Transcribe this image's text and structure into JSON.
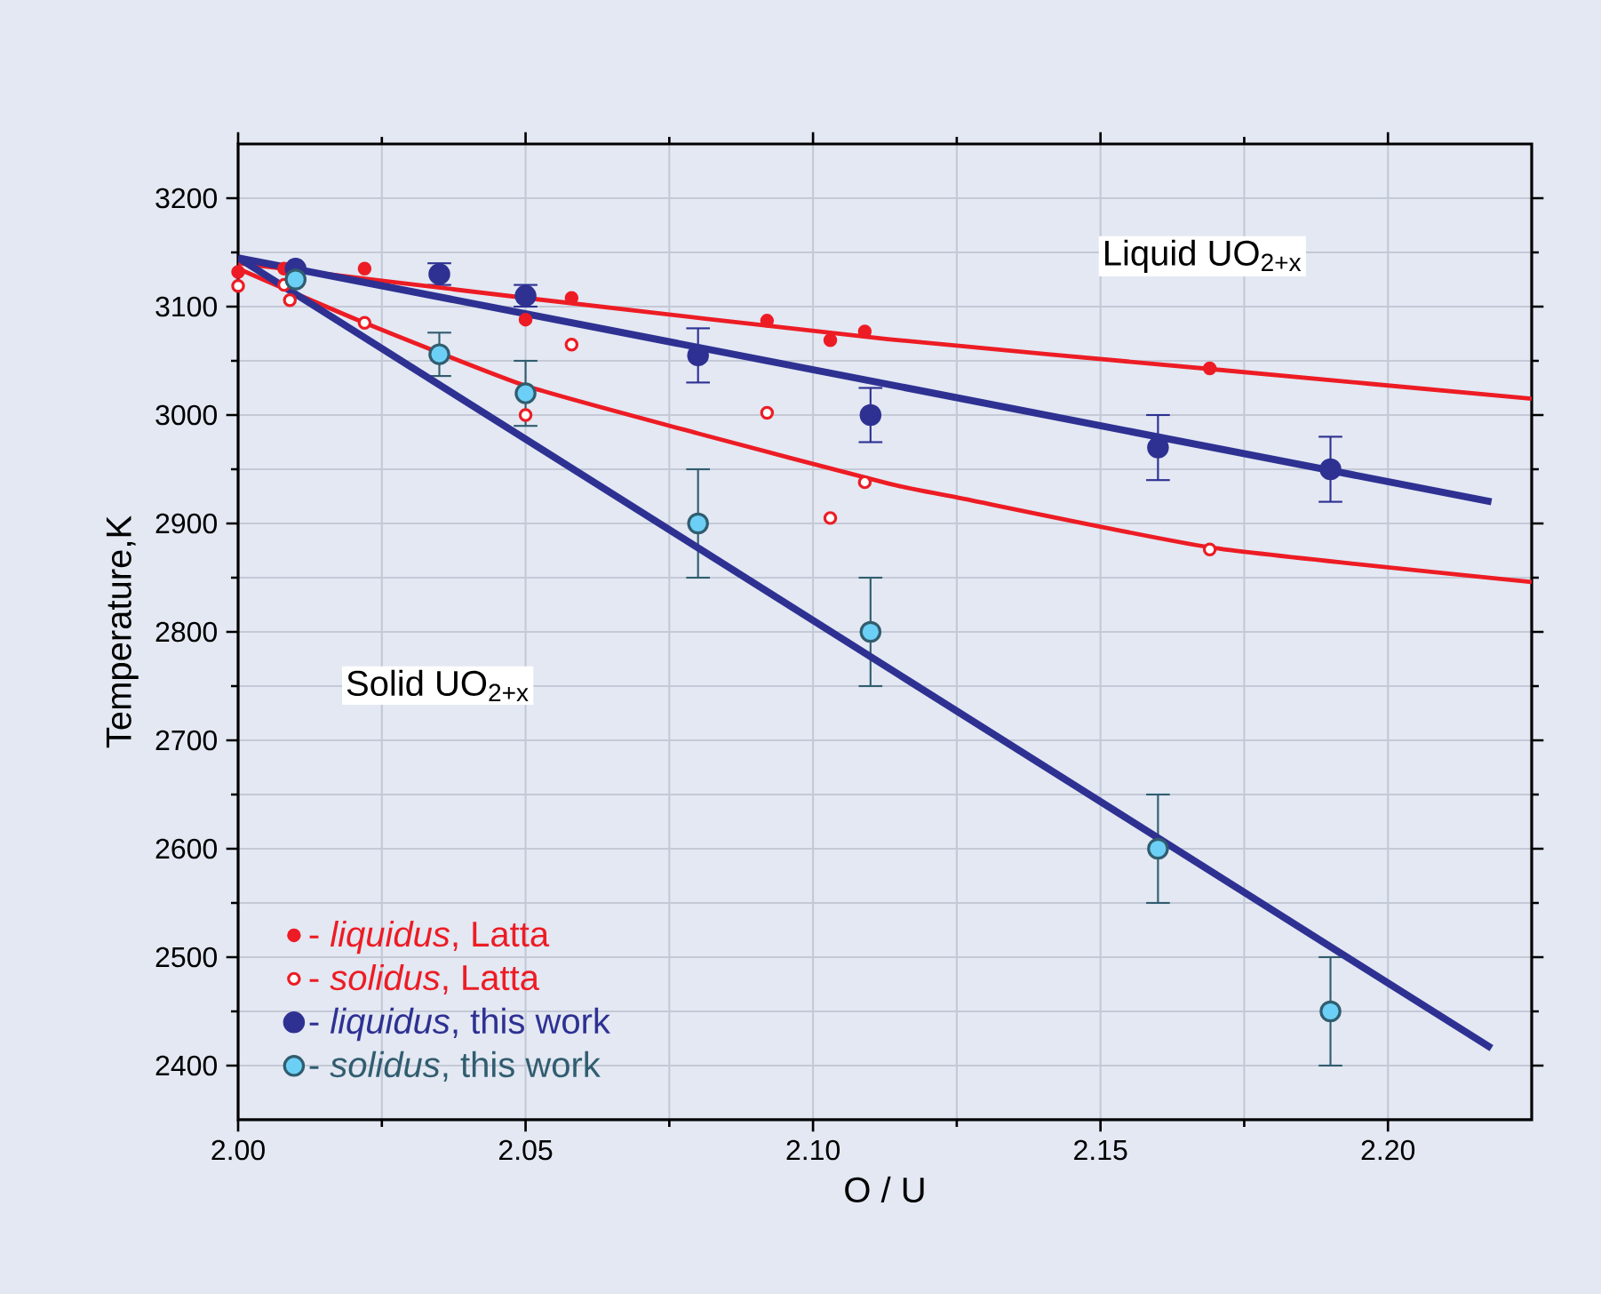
{
  "chart_data": {
    "type": "scatter",
    "xlabel": "O / U",
    "ylabel": "Temperature,K",
    "xlim": [
      2.0,
      2.225
    ],
    "ylim": [
      2350,
      3250
    ],
    "xticks": [
      {
        "value": 2.0,
        "label": "2.00"
      },
      {
        "value": 2.05,
        "label": "2.05"
      },
      {
        "value": 2.1,
        "label": "2.10"
      },
      {
        "value": 2.15,
        "label": "2.15"
      },
      {
        "value": 2.2,
        "label": "2.20"
      }
    ],
    "yticks": [
      2400,
      2500,
      2600,
      2700,
      2800,
      2900,
      3000,
      3100,
      3200
    ],
    "grid": true,
    "legend": "bottom left",
    "annotations": [
      "Liquid UO$_{2+x}$",
      "Solid UO$_{2+x}$"
    ],
    "series": [
      {
        "name": "- *liquidus*, Latta",
        "marker": "circle",
        "color": "#ed1c24",
        "x": [
          2.0,
          2.008,
          2.022,
          2.05,
          2.058,
          2.092,
          2.103,
          2.109,
          2.169
        ],
        "values": [
          3132,
          3135,
          3135,
          3088,
          3108,
          3087,
          3069,
          3077,
          3043
        ]
      },
      {
        "name": "- *solidus*, Latta",
        "marker": "circle",
        "color": "#ed1c24",
        "x": [
          2.0,
          2.008,
          2.009,
          2.022,
          2.05,
          2.058,
          2.092,
          2.103,
          2.109,
          2.169
        ],
        "values": [
          3119,
          3120,
          3106,
          3085,
          3000,
          3065,
          3002,
          2905,
          2938,
          2876
        ]
      },
      {
        "name": "- *liquidus*, this work",
        "marker": "circle",
        "color": "#2e3192",
        "x": [
          2.01,
          2.035,
          2.05,
          2.08,
          2.11,
          2.16,
          2.19
        ],
        "values": [
          3135,
          3130,
          3110,
          3055,
          3000,
          2970,
          2950
        ],
        "errors": [
          null,
          10,
          10,
          25,
          25,
          30,
          30
        ]
      },
      {
        "name": "- *solidus*, this work",
        "marker": "circle",
        "color": "#6ccff6",
        "x": [
          2.01,
          2.035,
          2.05,
          2.08,
          2.11,
          2.16,
          2.19
        ],
        "values": [
          3125,
          3056,
          3020,
          2900,
          2800,
          2600,
          2450
        ],
        "errors": [
          null,
          20,
          30,
          50,
          50,
          50,
          50
        ]
      },
      {
        "type": "line",
        "marker": "none",
        "color": "#ed1c24",
        "x": [
          2.0,
          2.05,
          2.113,
          2.17,
          2.225
        ],
        "values": [
          3140,
          3108,
          3070,
          3042,
          3015
        ]
      },
      {
        "type": "line",
        "marker": "none",
        "color": "#ed1c24",
        "x": [
          2.0,
          2.022,
          2.05,
          2.08,
          2.113,
          2.125,
          2.169,
          2.225
        ],
        "values": [
          3135,
          3085,
          3027,
          2983,
          2937,
          2924,
          2878,
          2846
        ]
      },
      {
        "type": "line",
        "marker": "none",
        "color": "#2e3192",
        "x": [
          2.0,
          2.218
        ],
        "values": [
          3145,
          2920
        ]
      },
      {
        "type": "line",
        "marker": "none",
        "color": "#2e3192",
        "x": [
          2.0,
          2.218
        ],
        "values": [
          3145,
          2416
        ]
      }
    ]
  }
}
